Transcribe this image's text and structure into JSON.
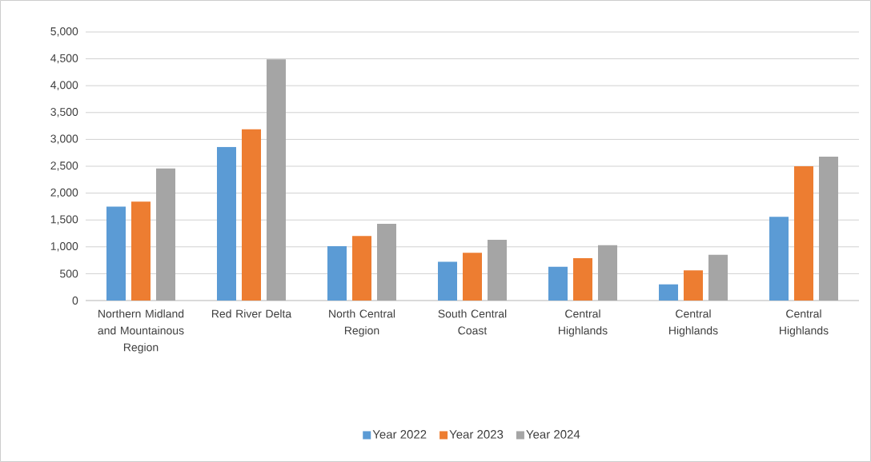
{
  "chart_data": {
    "type": "bar",
    "categories": [
      "Northern Midland and Mountainous Region",
      "Red River Delta",
      "North Central Region",
      "South Central Coast",
      "Central Highlands",
      "Central Highlands",
      "Central Highlands"
    ],
    "series": [
      {
        "name": "Year 2022",
        "color": "#5b9bd5",
        "values": [
          1750,
          2860,
          1010,
          720,
          630,
          300,
          1560
        ]
      },
      {
        "name": "Year 2023",
        "color": "#ed7d31",
        "values": [
          1840,
          3190,
          1200,
          890,
          790,
          560,
          2500
        ]
      },
      {
        "name": "Year 2024",
        "color": "#a5a5a5",
        "values": [
          2460,
          4490,
          1430,
          1130,
          1030,
          850,
          2680
        ]
      }
    ],
    "ylim": [
      0,
      5000
    ],
    "yticks": [
      {
        "value": 0,
        "label": "0"
      },
      {
        "value": 500,
        "label": "500"
      },
      {
        "value": 1000,
        "label": "1,000"
      },
      {
        "value": 1500,
        "label": "1,500"
      },
      {
        "value": 2000,
        "label": "2,000"
      },
      {
        "value": 2500,
        "label": "2,500"
      },
      {
        "value": 3000,
        "label": "3,000"
      },
      {
        "value": 3500,
        "label": "3,500"
      },
      {
        "value": 4000,
        "label": "4,000"
      },
      {
        "value": 4500,
        "label": "4,500"
      },
      {
        "value": 5000,
        "label": "5,000"
      }
    ],
    "grid": "y",
    "legend": "bottom"
  }
}
